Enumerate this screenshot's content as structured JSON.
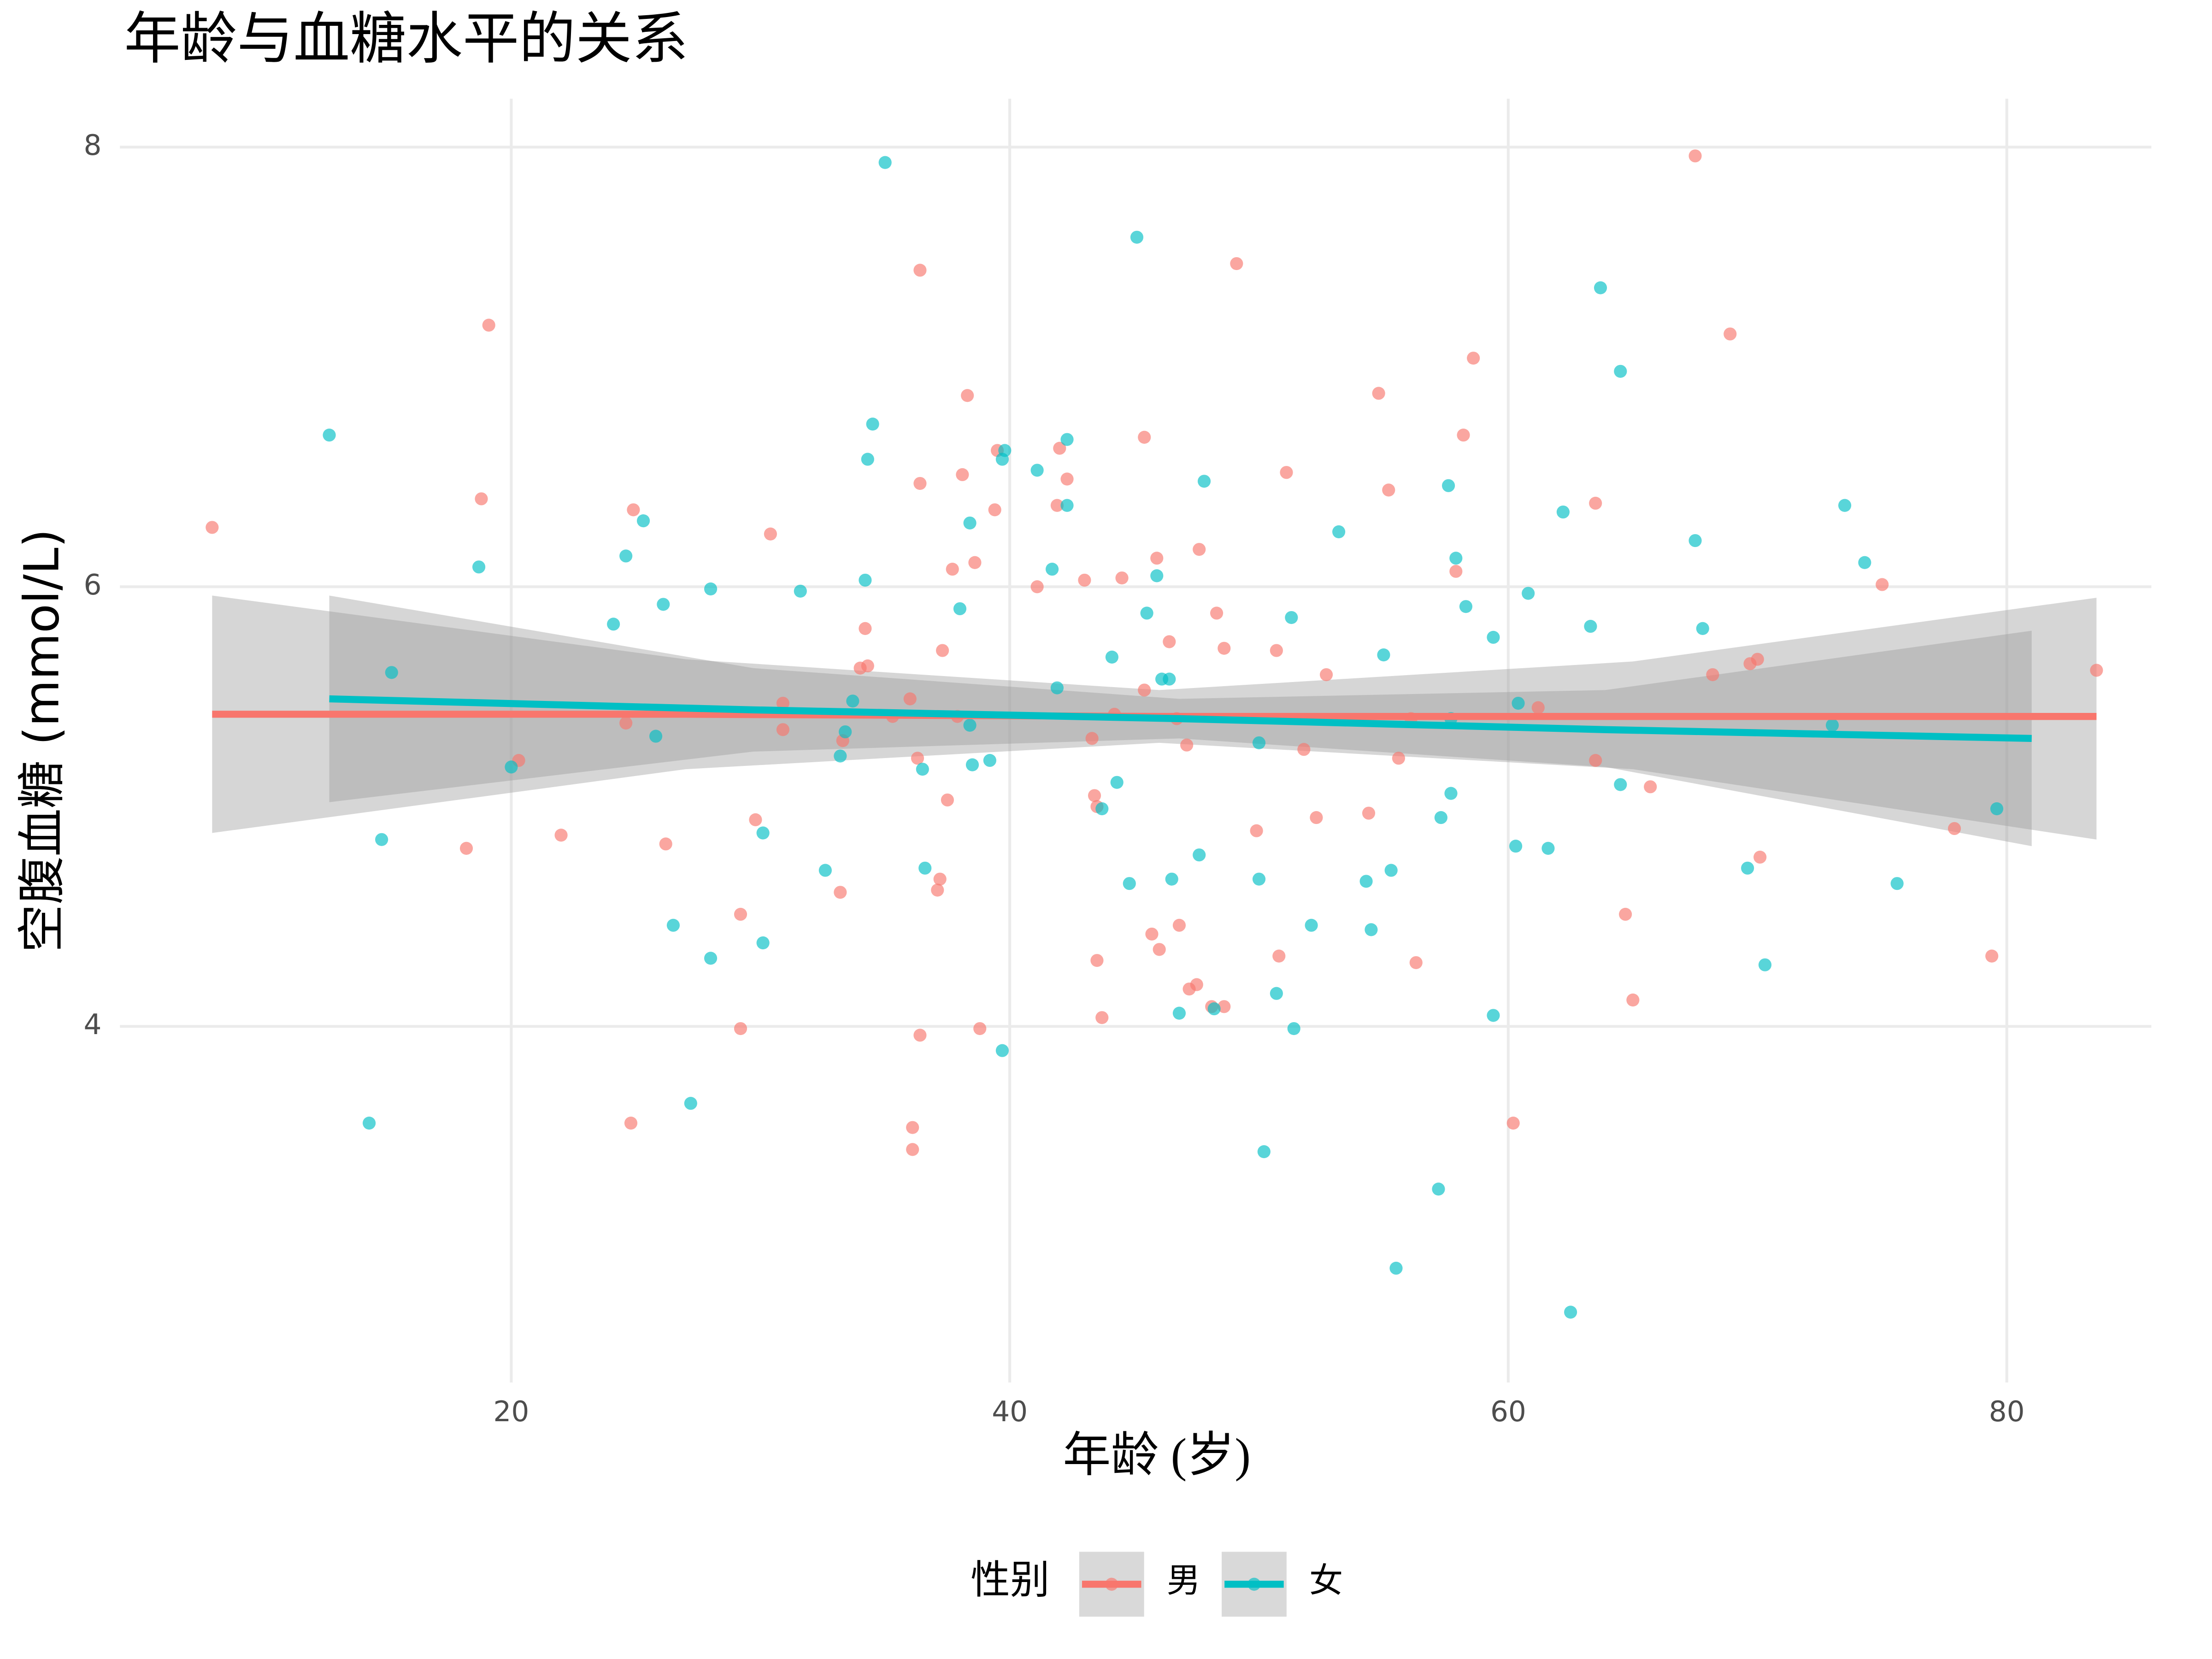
{
  "chart_data": {
    "type": "scatter",
    "title": "年龄与血糖水平的关系",
    "x_label": "年龄 (岁)",
    "y_label": "空腹血糖 (mmol/L)",
    "legend_title": "性别",
    "legend": "bottom",
    "grid": true,
    "xlim": [
      4.3,
      85.8
    ],
    "ylim": [
      2.38,
      8.22
    ],
    "xticks": [
      20,
      40,
      60,
      80
    ],
    "yticks": [
      4,
      6,
      8
    ],
    "series": [
      {
        "name": "男",
        "color": "#F8766D",
        "x": [
          8.0,
          19.1,
          18.8,
          18.2,
          20.3,
          22.0,
          24.6,
          24.9,
          24.8,
          26.2,
          29.2,
          29.2,
          29.8,
          30.4,
          30.9,
          30.9,
          33.2,
          33.3,
          34.0,
          34.2,
          34.3,
          35.3,
          36.0,
          36.4,
          36.4,
          36.3,
          36.4,
          36.1,
          36.1,
          37.2,
          37.1,
          37.3,
          37.5,
          37.7,
          37.9,
          38.1,
          38.3,
          38.6,
          38.8,
          39.4,
          39.5,
          41.1,
          42.0,
          41.9,
          42.3,
          43.0,
          43.3,
          43.4,
          43.5,
          43.5,
          43.7,
          44.2,
          44.5,
          45.4,
          45.4,
          45.7,
          45.9,
          46.0,
          46.4,
          46.7,
          46.8,
          47.1,
          47.2,
          47.5,
          47.6,
          48.1,
          48.3,
          48.6,
          48.6,
          49.1,
          49.9,
          50.7,
          50.8,
          51.1,
          51.8,
          52.3,
          52.7,
          54.4,
          54.8,
          55.2,
          55.6,
          56.1,
          56.3,
          57.9,
          58.2,
          58.6,
          60.2,
          61.2,
          63.5,
          63.5,
          64.7,
          65.0,
          65.7,
          67.5,
          68.2,
          68.9,
          69.7,
          70.0,
          70.1,
          75.0,
          77.9,
          79.4,
          83.6
        ],
        "values": [
          6.27,
          7.19,
          6.4,
          4.81,
          5.21,
          4.87,
          5.38,
          6.35,
          3.56,
          4.83,
          4.51,
          3.99,
          4.94,
          6.24,
          5.47,
          5.35,
          4.61,
          5.3,
          5.63,
          5.81,
          5.64,
          5.41,
          5.49,
          7.44,
          6.47,
          5.22,
          3.96,
          3.54,
          3.44,
          4.67,
          4.62,
          5.71,
          5.03,
          6.08,
          5.41,
          6.51,
          6.87,
          6.11,
          3.99,
          6.35,
          6.62,
          6.0,
          6.63,
          6.37,
          6.49,
          6.03,
          5.31,
          5.05,
          5.0,
          4.3,
          4.04,
          5.42,
          6.04,
          5.53,
          6.68,
          4.42,
          6.13,
          4.35,
          5.75,
          5.4,
          4.46,
          5.28,
          4.17,
          4.19,
          6.17,
          4.09,
          5.88,
          4.09,
          5.72,
          7.47,
          4.89,
          5.71,
          4.32,
          6.52,
          5.26,
          4.95,
          5.6,
          4.97,
          6.88,
          6.44,
          5.22,
          5.4,
          4.29,
          6.07,
          6.69,
          7.04,
          3.56,
          5.45,
          5.21,
          6.38,
          4.51,
          4.12,
          5.09,
          7.96,
          5.6,
          7.15,
          5.65,
          5.67,
          4.77,
          6.01,
          4.9,
          4.32,
          5.62
        ],
        "fit": {
          "x": [
            8.0,
            27.0,
            46.0,
            65.0,
            83.6
          ],
          "y": [
            5.42,
            5.42,
            5.41,
            5.41,
            5.41
          ],
          "lower": [
            4.88,
            5.17,
            5.29,
            5.17,
            4.85
          ],
          "upper": [
            5.96,
            5.67,
            5.53,
            5.66,
            5.95
          ]
        }
      },
      {
        "name": "女",
        "color": "#00BFC4",
        "x": [
          12.7,
          14.3,
          14.8,
          15.2,
          18.7,
          20.0,
          24.1,
          24.6,
          25.3,
          25.8,
          26.1,
          26.5,
          27.2,
          28.0,
          28.0,
          30.1,
          30.1,
          31.6,
          32.6,
          33.2,
          33.4,
          33.7,
          34.2,
          34.3,
          34.5,
          35.0,
          36.5,
          36.6,
          38.0,
          38.4,
          38.4,
          38.5,
          39.2,
          39.7,
          39.8,
          39.7,
          41.1,
          41.7,
          41.9,
          42.3,
          42.3,
          43.7,
          44.1,
          44.3,
          44.8,
          45.1,
          45.5,
          45.9,
          46.1,
          46.4,
          46.5,
          46.8,
          47.6,
          47.8,
          48.2,
          50.0,
          50.0,
          50.2,
          50.7,
          51.3,
          51.4,
          52.1,
          53.2,
          54.3,
          54.5,
          55.0,
          55.3,
          55.5,
          57.2,
          57.3,
          57.6,
          57.7,
          57.7,
          57.9,
          58.3,
          59.4,
          59.4,
          60.3,
          60.4,
          60.8,
          61.6,
          62.2,
          62.5,
          63.3,
          63.7,
          64.5,
          64.5,
          67.5,
          67.8,
          69.6,
          70.3,
          73.0,
          73.5,
          74.3,
          75.6,
          79.6
        ],
        "values": [
          6.69,
          3.56,
          4.85,
          5.61,
          6.09,
          5.18,
          5.83,
          6.14,
          6.3,
          5.32,
          5.92,
          4.46,
          3.65,
          4.31,
          5.99,
          4.38,
          4.88,
          5.98,
          4.71,
          5.23,
          5.34,
          5.48,
          6.03,
          6.58,
          6.74,
          7.93,
          5.17,
          4.72,
          5.9,
          6.29,
          5.37,
          5.19,
          5.21,
          6.58,
          6.62,
          3.89,
          6.53,
          6.08,
          5.54,
          6.67,
          6.37,
          4.99,
          5.68,
          5.11,
          4.65,
          7.59,
          5.88,
          6.05,
          5.58,
          5.58,
          4.67,
          4.06,
          4.78,
          6.48,
          4.08,
          5.29,
          4.67,
          3.43,
          4.15,
          5.86,
          3.99,
          4.46,
          6.25,
          4.66,
          4.44,
          5.69,
          4.71,
          2.9,
          3.26,
          4.95,
          6.46,
          5.06,
          5.4,
          6.13,
          5.91,
          5.77,
          4.05,
          4.82,
          5.47,
          5.97,
          4.81,
          6.34,
          2.7,
          5.82,
          7.36,
          6.98,
          5.1,
          6.21,
          5.81,
          4.72,
          4.28,
          5.37,
          6.37,
          6.11,
          4.65,
          4.99
        ],
        "fit": {
          "x": [
            12.7,
            29.7,
            46.8,
            63.9,
            81.0
          ],
          "y": [
            5.49,
            5.44,
            5.4,
            5.35,
            5.31
          ],
          "lower": [
            5.02,
            5.25,
            5.31,
            5.18,
            4.82
          ],
          "upper": [
            5.96,
            5.63,
            5.49,
            5.53,
            5.8
          ]
        }
      }
    ]
  }
}
